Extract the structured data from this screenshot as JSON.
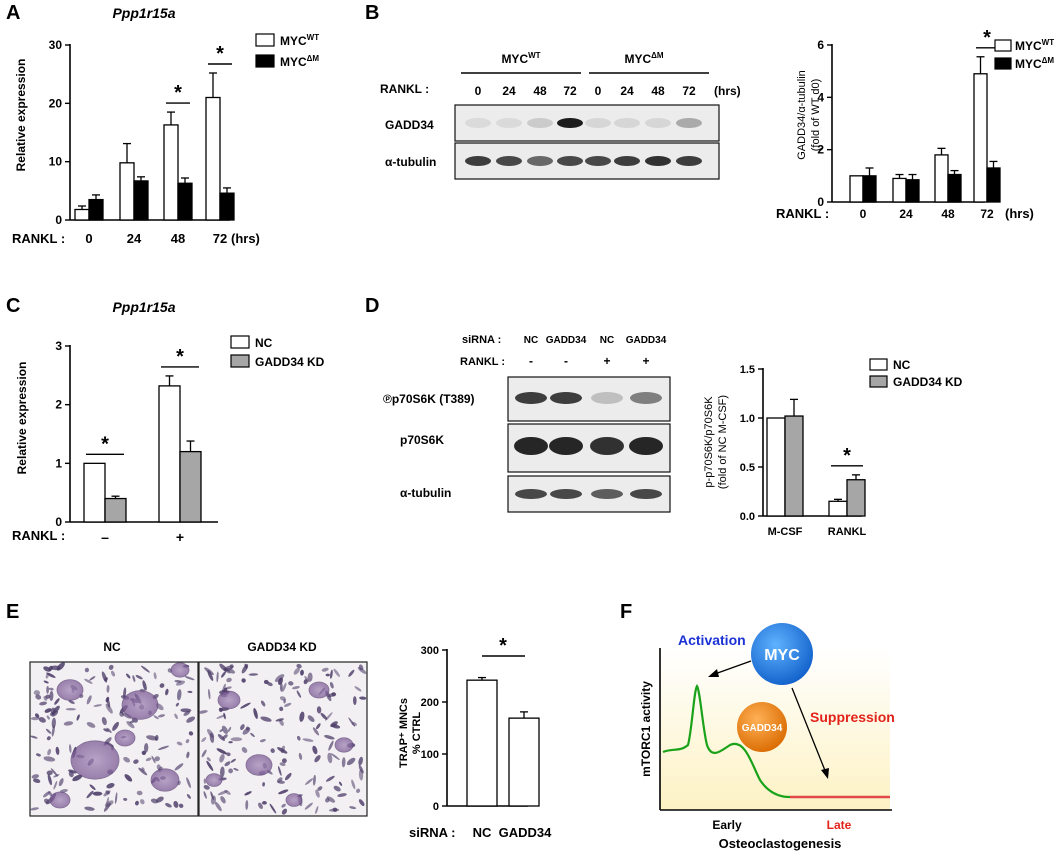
{
  "panel_letters": [
    "A",
    "B",
    "C",
    "D",
    "E",
    "F"
  ],
  "colors": {
    "wt": "#ffffff",
    "dm": "#000000",
    "nc": "#ffffff",
    "kd": "#a6a6a6",
    "myc_circle": "#1b7be0",
    "gadd34_circle": "#e87e10",
    "activation": "#1a31d6",
    "suppression": "#e2231a",
    "curve": "#1aa31a",
    "late_line": "#e24a4a"
  },
  "panelA": {
    "title": "Ppp1r15a",
    "ylabel": "Relative expression",
    "rankl_label": "RANKL :",
    "unit": "(hrs)",
    "legend": {
      "wt": "MYC",
      "wt_sup": "WT",
      "dm": "MYC",
      "dm_sup": "ΔM"
    },
    "star": "*"
  },
  "panelB": {
    "groups": [
      {
        "name": "MYC",
        "sup": "WT"
      },
      {
        "name": "MYC",
        "sup": "ΔM"
      }
    ],
    "rankl_label": "RANKL :",
    "lanes": [
      "0",
      "24",
      "48",
      "72",
      "0",
      "24",
      "48",
      "72"
    ],
    "unit": "(hrs)",
    "blot_labels": [
      "GADD34",
      "α-tubulin"
    ],
    "ylabel_line1": "GADD34/α-tubulin",
    "ylabel_line2": "(fold of WT d0)",
    "star": "*"
  },
  "panelC": {
    "title": "Ppp1r15a",
    "ylabel": "Relative expression",
    "rankl_label": "RANKL :",
    "legend": [
      "NC",
      "GADD34 KD"
    ],
    "star": "*"
  },
  "panelD": {
    "sirna_label": "siRNA :",
    "sirna_lanes": [
      "NC",
      "GADD34",
      "NC",
      "GADD34"
    ],
    "rankl_label": "RANKL :",
    "rankl_lanes": [
      "-",
      "-",
      "+",
      "+"
    ],
    "blot_labels": [
      "℗p70S6K (T389)",
      "p70S6K",
      "α-tubulin"
    ],
    "ylabel_line1": "p-p70S6K/p70S6K",
    "ylabel_line2": "(fold of NC M-CSF)",
    "legend": [
      "NC",
      "GADD34 KD"
    ],
    "star": "*"
  },
  "panelE": {
    "image_labels": [
      "NC",
      "GADD34 KD"
    ],
    "ylabel_line1": "TRAP⁺ MNCs",
    "ylabel_line2": "% CTRL",
    "sirna_label": "siRNA :",
    "star": "*"
  },
  "panelF": {
    "ylabel": "mTORC1 activity",
    "xlabel": "Osteoclastogenesis",
    "early": "Early",
    "late": "Late",
    "myc": "MYC",
    "gadd34": "GADD34",
    "activation": "Activation",
    "suppression": "Suppression"
  },
  "chart_data": [
    {
      "panel": "A",
      "type": "bar",
      "categories": [
        "0",
        "24",
        "48",
        "72"
      ],
      "series": [
        {
          "name": "MYCWT",
          "values": [
            1.8,
            9.8,
            16.3,
            21.0
          ],
          "errors": [
            0.6,
            3.3,
            2.2,
            4.2
          ]
        },
        {
          "name": "MYCΔM",
          "values": [
            3.5,
            6.7,
            6.3,
            4.6
          ],
          "errors": [
            0.8,
            0.7,
            0.9,
            0.9
          ]
        }
      ],
      "ylim": [
        0,
        30
      ],
      "yticks": [
        0,
        10,
        20,
        30
      ],
      "significance": [
        "48",
        "72"
      ]
    },
    {
      "panel": "B",
      "type": "bar",
      "categories": [
        "0",
        "24",
        "48",
        "72"
      ],
      "series": [
        {
          "name": "MYCWT",
          "values": [
            1.0,
            0.9,
            1.8,
            4.9
          ],
          "errors": [
            0.0,
            0.15,
            0.25,
            0.65
          ]
        },
        {
          "name": "MYCΔM",
          "values": [
            1.0,
            0.85,
            1.05,
            1.3
          ],
          "errors": [
            0.3,
            0.2,
            0.15,
            0.25
          ]
        }
      ],
      "ylim": [
        0,
        6
      ],
      "yticks": [
        0,
        2,
        4,
        6
      ],
      "significance": [
        "72"
      ]
    },
    {
      "panel": "C",
      "type": "bar",
      "categories": [
        "–",
        "+"
      ],
      "series": [
        {
          "name": "NC",
          "values": [
            1.0,
            2.32
          ],
          "errors": [
            0.0,
            0.17
          ]
        },
        {
          "name": "GADD34 KD",
          "values": [
            0.4,
            1.2
          ],
          "errors": [
            0.04,
            0.18
          ]
        }
      ],
      "ylim": [
        0,
        3
      ],
      "yticks": [
        0,
        1,
        2,
        3
      ],
      "significance": [
        "–",
        "+"
      ]
    },
    {
      "panel": "D",
      "type": "bar",
      "categories": [
        "M-CSF",
        "RANKL"
      ],
      "series": [
        {
          "name": "NC",
          "values": [
            1.0,
            0.15
          ],
          "errors": [
            0.0,
            0.02
          ]
        },
        {
          "name": "GADD34 KD",
          "values": [
            1.02,
            0.37
          ],
          "errors": [
            0.17,
            0.05
          ]
        }
      ],
      "ylim": [
        0,
        1.5
      ],
      "yticks": [
        0.0,
        0.5,
        1.0,
        1.5
      ],
      "significance": [
        "RANKL"
      ]
    },
    {
      "panel": "E",
      "type": "bar",
      "categories": [
        "NC",
        "GADD34"
      ],
      "series": [
        {
          "name": "TRAP⁺ MNCs",
          "values": [
            242,
            169
          ],
          "errors": [
            5,
            12
          ]
        }
      ],
      "ylim": [
        0,
        300
      ],
      "yticks": [
        0,
        100,
        200,
        300
      ],
      "significance": [
        "NC-GADD34"
      ]
    }
  ]
}
